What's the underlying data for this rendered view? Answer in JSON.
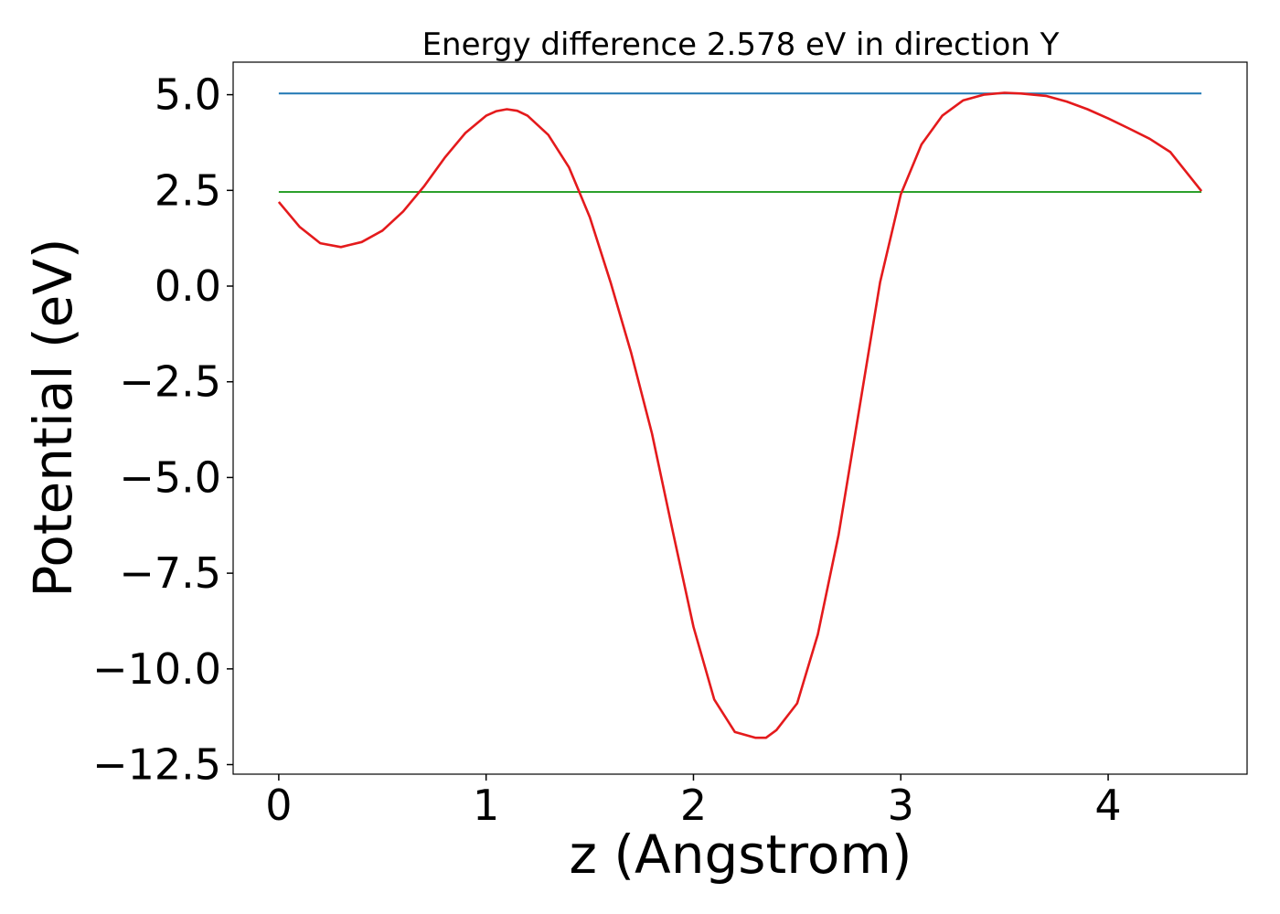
{
  "chart_data": {
    "type": "line",
    "title": "Energy difference 2.578 eV in direction Y",
    "xlabel": "z (Angstrom)",
    "ylabel": "Potential (eV)",
    "xlim": [
      -0.22,
      4.67
    ],
    "ylim": [
      -12.75,
      5.85
    ],
    "xticks": [
      0,
      1,
      2,
      3,
      4
    ],
    "xtick_labels": [
      "0",
      "1",
      "2",
      "3",
      "4"
    ],
    "yticks": [
      5.0,
      2.5,
      0.0,
      -2.5,
      -5.0,
      -7.5,
      -10.0,
      -12.5
    ],
    "ytick_labels": [
      "5.0",
      "2.5",
      "0.0",
      "−2.5",
      "−5.0",
      "−7.5",
      "−10.0",
      "−12.5"
    ],
    "grid": false,
    "series": [
      {
        "color": "#1f77b4",
        "x": [
          0,
          4.45
        ],
        "y": [
          5.03,
          5.03
        ]
      },
      {
        "color": "#2ca02c",
        "x": [
          0,
          4.45
        ],
        "y": [
          2.46,
          2.46
        ]
      },
      {
        "color": "#e41a1c",
        "x": [
          0,
          0.1,
          0.2,
          0.3,
          0.4,
          0.5,
          0.6,
          0.7,
          0.8,
          0.9,
          1.0,
          1.05,
          1.1,
          1.15,
          1.2,
          1.3,
          1.4,
          1.5,
          1.6,
          1.7,
          1.8,
          1.9,
          2.0,
          2.1,
          2.2,
          2.3,
          2.35,
          2.4,
          2.5,
          2.6,
          2.7,
          2.8,
          2.9,
          3.0,
          3.1,
          3.2,
          3.3,
          3.4,
          3.5,
          3.58,
          3.7,
          3.8,
          3.9,
          4.0,
          4.1,
          4.2,
          4.3,
          4.45
        ],
        "y": [
          2.2,
          1.55,
          1.12,
          1.02,
          1.15,
          1.45,
          1.95,
          2.6,
          3.35,
          4.0,
          4.45,
          4.57,
          4.62,
          4.58,
          4.45,
          3.95,
          3.1,
          1.8,
          0.1,
          -1.75,
          -3.85,
          -6.4,
          -8.9,
          -10.8,
          -11.65,
          -11.8,
          -11.8,
          -11.6,
          -10.9,
          -9.1,
          -6.5,
          -3.2,
          0.1,
          2.4,
          3.7,
          4.45,
          4.85,
          5.0,
          5.05,
          5.03,
          4.97,
          4.82,
          4.62,
          4.38,
          4.12,
          3.85,
          3.5,
          2.48
        ]
      }
    ]
  }
}
